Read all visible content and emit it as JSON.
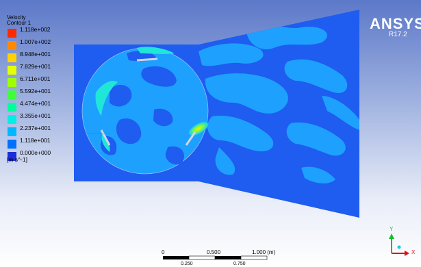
{
  "legend": {
    "title": "Velocity",
    "subtitle": "Contour 1",
    "levels": [
      {
        "value": "1.118e+002",
        "color": "#ff2a00"
      },
      {
        "value": "1.007e+002",
        "color": "#ff8a00"
      },
      {
        "value": "8.948e+001",
        "color": "#ffd200"
      },
      {
        "value": "7.829e+001",
        "color": "#e6ff00"
      },
      {
        "value": "6.711e+001",
        "color": "#9fff00"
      },
      {
        "value": "5.592e+001",
        "color": "#3fff3a"
      },
      {
        "value": "4.474e+001",
        "color": "#00ff9c"
      },
      {
        "value": "3.355e+001",
        "color": "#00f0e6"
      },
      {
        "value": "2.237e+001",
        "color": "#00b8ff"
      },
      {
        "value": "1.118e+001",
        "color": "#0070ff"
      },
      {
        "value": "0.000e+000",
        "color": "#1c2ed8"
      }
    ],
    "units": "[m s^-1]"
  },
  "brand": {
    "name": "ANSYS",
    "release": "R17.2"
  },
  "scale_bar": {
    "top_labels": [
      "0",
      "0.500",
      "1.000 (m)"
    ],
    "bottom_labels": [
      "0.250",
      "0.750"
    ]
  },
  "axes": {
    "x": "X",
    "y": "Y"
  },
  "colors": {
    "domain_base": "#1f5cf0",
    "domain_mid": "#1ea0ff",
    "highlight": "#ffe800"
  }
}
